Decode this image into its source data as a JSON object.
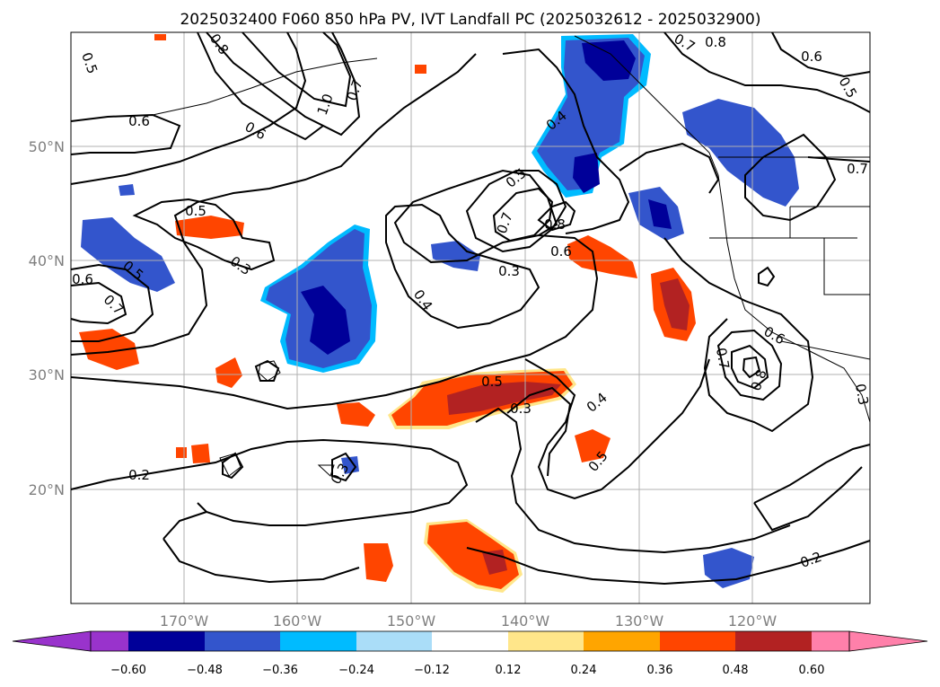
{
  "title": "2025032400 F060 850 hPa PV, IVT Landfall PC (2025032612 - 2025032900)",
  "map": {
    "lon_ticks": [
      "170°W",
      "160°W",
      "150°W",
      "140°W",
      "130°W",
      "120°W"
    ],
    "lat_ticks": [
      "50°N",
      "40°N",
      "30°N",
      "20°N"
    ],
    "contour_labels": [
      "0.5",
      "0.8",
      "1.0",
      "0.7",
      "0.6",
      "0.6",
      "0.8",
      "0.6",
      "0.5",
      "0.5",
      "0.3",
      "0.5",
      "0.7",
      "0.6",
      "0.4",
      "0.4",
      "0.5",
      "0.7",
      "0.8",
      "0.6",
      "0.3",
      "0.5",
      "0.3",
      "0.4",
      "0.5",
      "0.7",
      "0.8",
      "0.6",
      "0.3",
      "0.2",
      "0.3",
      "0.2",
      "0.7",
      "0.7"
    ],
    "colors": {
      "neg_0_60": "#9933cc",
      "neg_0_48": "#000099",
      "neg_0_36": "#3355cc",
      "neg_0_24": "#00bbff",
      "neg_0_12": "#aaddf8",
      "zero": "#ffffff",
      "pos_0_12": "#ffe68a",
      "pos_0_24": "#ffa500",
      "pos_0_36": "#ff4500",
      "pos_0_48": "#b22222",
      "pos_0_60": "#ff80aa"
    }
  },
  "colorbar": {
    "ticks": [
      "−0.60",
      "−0.48",
      "−0.36",
      "−0.24",
      "−0.12",
      "0.12",
      "0.24",
      "0.36",
      "0.48",
      "0.60"
    ],
    "colors": [
      "#9933cc",
      "#000099",
      "#3355cc",
      "#00bbff",
      "#aaddf8",
      "#ffffff",
      "#ffe68a",
      "#ffa500",
      "#ff4500",
      "#b22222",
      "#ff80aa"
    ]
  }
}
